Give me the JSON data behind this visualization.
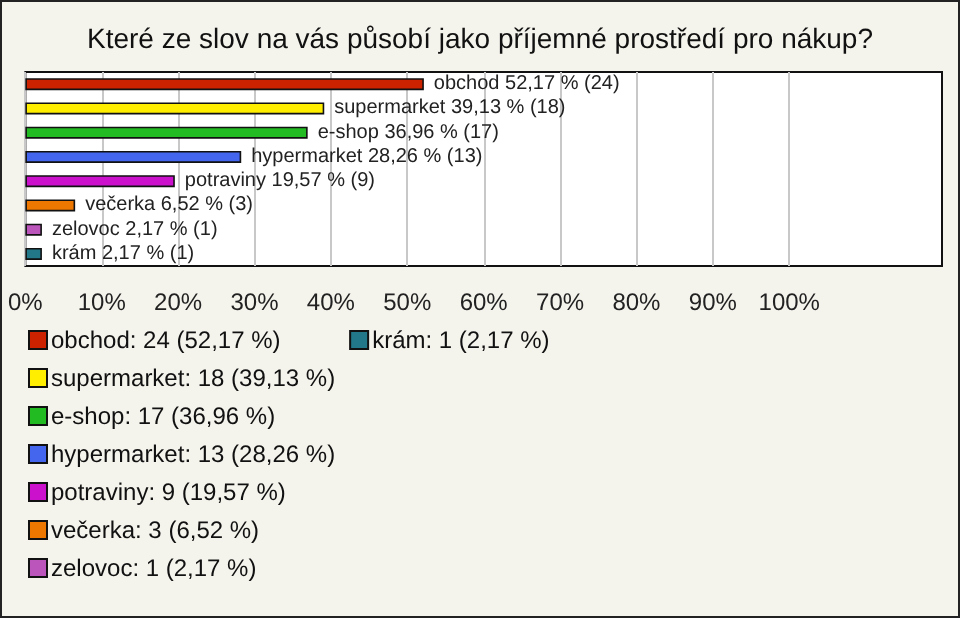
{
  "chart_data": {
    "type": "bar",
    "orientation": "horizontal",
    "stacked": true,
    "title": "Které ze slov na vás působí jako příjemné prostředí pro nákup?",
    "categories": [
      null,
      null,
      null,
      null,
      null,
      null,
      null,
      null
    ],
    "xlim": [
      0,
      120
    ],
    "xticks": [
      {
        "value": 0,
        "label": "0%"
      },
      {
        "value": 10,
        "label": "10%"
      },
      {
        "value": 20,
        "label": "20%"
      },
      {
        "value": 30,
        "label": "30%"
      },
      {
        "value": 40,
        "label": "40%"
      },
      {
        "value": 50,
        "label": "50%"
      },
      {
        "value": 60,
        "label": "60%"
      },
      {
        "value": 70,
        "label": "70%"
      },
      {
        "value": 80,
        "label": "80%"
      },
      {
        "value": 90,
        "label": "90%"
      },
      {
        "value": 100,
        "label": "100%"
      }
    ],
    "grid": "x",
    "legend": "bottom left",
    "series": [
      {
        "name": "obchod: 24 (52,17 %)",
        "color": "#cc2200",
        "values": [
          52.17,
          null,
          null,
          null,
          null,
          null,
          null,
          null
        ],
        "value_labels": [
          "obchod 52,17 % (24)",
          null,
          null,
          null,
          null,
          null,
          null,
          null
        ]
      },
      {
        "name": "supermarket: 18 (39,13 %)",
        "color": "#ffee00",
        "values": [
          null,
          39.13,
          null,
          null,
          null,
          null,
          null,
          null
        ],
        "value_labels": [
          null,
          "supermarket 39,13 % (18)",
          null,
          null,
          null,
          null,
          null,
          null
        ]
      },
      {
        "name": "e-shop: 17 (36,96 %)",
        "color": "#22bb22",
        "values": [
          null,
          null,
          36.96,
          null,
          null,
          null,
          null,
          null
        ],
        "value_labels": [
          null,
          null,
          "e-shop 36,96 % (17)",
          null,
          null,
          null,
          null,
          null
        ]
      },
      {
        "name": "hypermarket: 13 (28,26 %)",
        "color": "#4466ee",
        "values": [
          null,
          null,
          null,
          28.26,
          null,
          null,
          null,
          null
        ],
        "value_labels": [
          null,
          null,
          null,
          "hypermarket 28,26 % (13)",
          null,
          null,
          null,
          null
        ]
      },
      {
        "name": "potraviny: 9 (19,57 %)",
        "color": "#cc11cc",
        "values": [
          null,
          null,
          null,
          null,
          19.57,
          null,
          null,
          null
        ],
        "value_labels": [
          null,
          null,
          null,
          null,
          "potraviny 19,57 % (9)",
          null,
          null,
          null
        ]
      },
      {
        "name": "večerka: 3 (6,52 %)",
        "color": "#ee7700",
        "values": [
          null,
          null,
          null,
          null,
          null,
          6.52,
          null,
          null
        ],
        "value_labels": [
          null,
          null,
          null,
          null,
          null,
          "večerka 6,52 % (3)",
          null,
          null
        ]
      },
      {
        "name": "zelovoc: 1 (2,17 %)",
        "color": "#bb55bb",
        "values": [
          null,
          null,
          null,
          null,
          null,
          null,
          2.17,
          null
        ],
        "value_labels": [
          null,
          null,
          null,
          null,
          null,
          null,
          "zelovoc 2,17 % (1)",
          null
        ]
      },
      {
        "name": "krám: 1 (2,17 %)",
        "color": "#227788",
        "values": [
          null,
          null,
          null,
          null,
          null,
          null,
          null,
          2.17
        ],
        "value_labels": [
          null,
          null,
          null,
          null,
          null,
          null,
          null,
          "krám 2,17 % (1)"
        ]
      }
    ]
  }
}
